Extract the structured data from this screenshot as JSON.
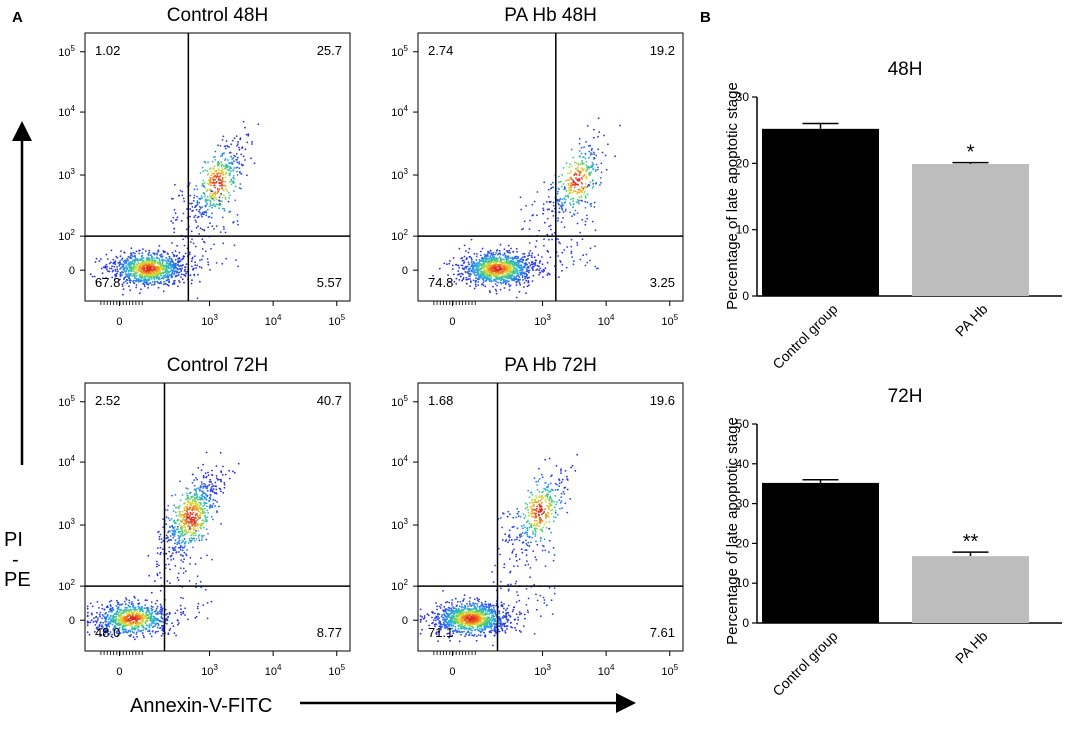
{
  "figure": {
    "panel_a_label": "A",
    "panel_b_label": "B",
    "y_axis_label_line1": "PI",
    "y_axis_label_dash": "-",
    "y_axis_label_line2": "PE",
    "x_axis_label": "Annexin-V-FITC"
  },
  "chart_data": [
    {
      "type": "scatter",
      "title": "Control 48H",
      "xlabel": "Annexin-V-FITC",
      "ylabel": "PI-PE",
      "x_tick_labels": [
        "0",
        "10^3",
        "10^4",
        "10^5"
      ],
      "y_tick_labels": [
        "0",
        "10^2",
        "10^3",
        "10^4",
        "10^5"
      ],
      "quadrants": {
        "upper_left": "1.02",
        "upper_right": "25.7",
        "lower_left": "67.8",
        "lower_right": "5.57"
      }
    },
    {
      "type": "scatter",
      "title": "PA Hb 48H",
      "xlabel": "Annexin-V-FITC",
      "ylabel": "PI-PE",
      "x_tick_labels": [
        "0",
        "10^3",
        "10^4",
        "10^5"
      ],
      "y_tick_labels": [
        "0",
        "10^2",
        "10^3",
        "10^4",
        "10^5"
      ],
      "quadrants": {
        "upper_left": "2.74",
        "upper_right": "19.2",
        "lower_left": "74.8",
        "lower_right": "3.25"
      }
    },
    {
      "type": "scatter",
      "title": "Control 72H",
      "xlabel": "Annexin-V-FITC",
      "ylabel": "PI-PE",
      "x_tick_labels": [
        "0",
        "10^3",
        "10^4",
        "10^5"
      ],
      "y_tick_labels": [
        "0",
        "10^2",
        "10^3",
        "10^4",
        "10^5"
      ],
      "quadrants": {
        "upper_left": "2.52",
        "upper_right": "40.7",
        "lower_left": "48.0",
        "lower_right": "8.77"
      }
    },
    {
      "type": "scatter",
      "title": "PA Hb 72H",
      "xlabel": "Annexin-V-FITC",
      "ylabel": "PI-PE",
      "x_tick_labels": [
        "0",
        "10^3",
        "10^4",
        "10^5"
      ],
      "y_tick_labels": [
        "0",
        "10^2",
        "10^3",
        "10^4",
        "10^5"
      ],
      "quadrants": {
        "upper_left": "1.68",
        "upper_right": "19.6",
        "lower_left": "71.1",
        "lower_right": "7.61"
      }
    },
    {
      "type": "bar",
      "title": "48H",
      "ylabel": "Percentage of late apoptotic stage",
      "xlabel": "",
      "categories": [
        "Control group",
        "PA Hb"
      ],
      "values": [
        25.2,
        19.9
      ],
      "errors": [
        0.8,
        0.2
      ],
      "colors": [
        "#000000",
        "#bdbdbd"
      ],
      "significance": [
        "",
        "*"
      ],
      "ylim": [
        0,
        30
      ],
      "yticks": [
        0,
        10,
        20,
        30
      ]
    },
    {
      "type": "bar",
      "title": "72H",
      "ylabel": "Percentage of late apoptotic stage",
      "xlabel": "",
      "categories": [
        "Control group",
        "PA Hb"
      ],
      "values": [
        35.2,
        16.8
      ],
      "errors": [
        0.8,
        1.0
      ],
      "colors": [
        "#000000",
        "#bdbdbd"
      ],
      "significance": [
        "",
        "**"
      ],
      "ylim": [
        0,
        50
      ],
      "yticks": [
        0,
        10,
        20,
        30,
        40,
        50
      ],
      "ytick_labels": [
        "0",
        "10",
        "20",
        "30",
        "40",
        "50"
      ]
    }
  ]
}
